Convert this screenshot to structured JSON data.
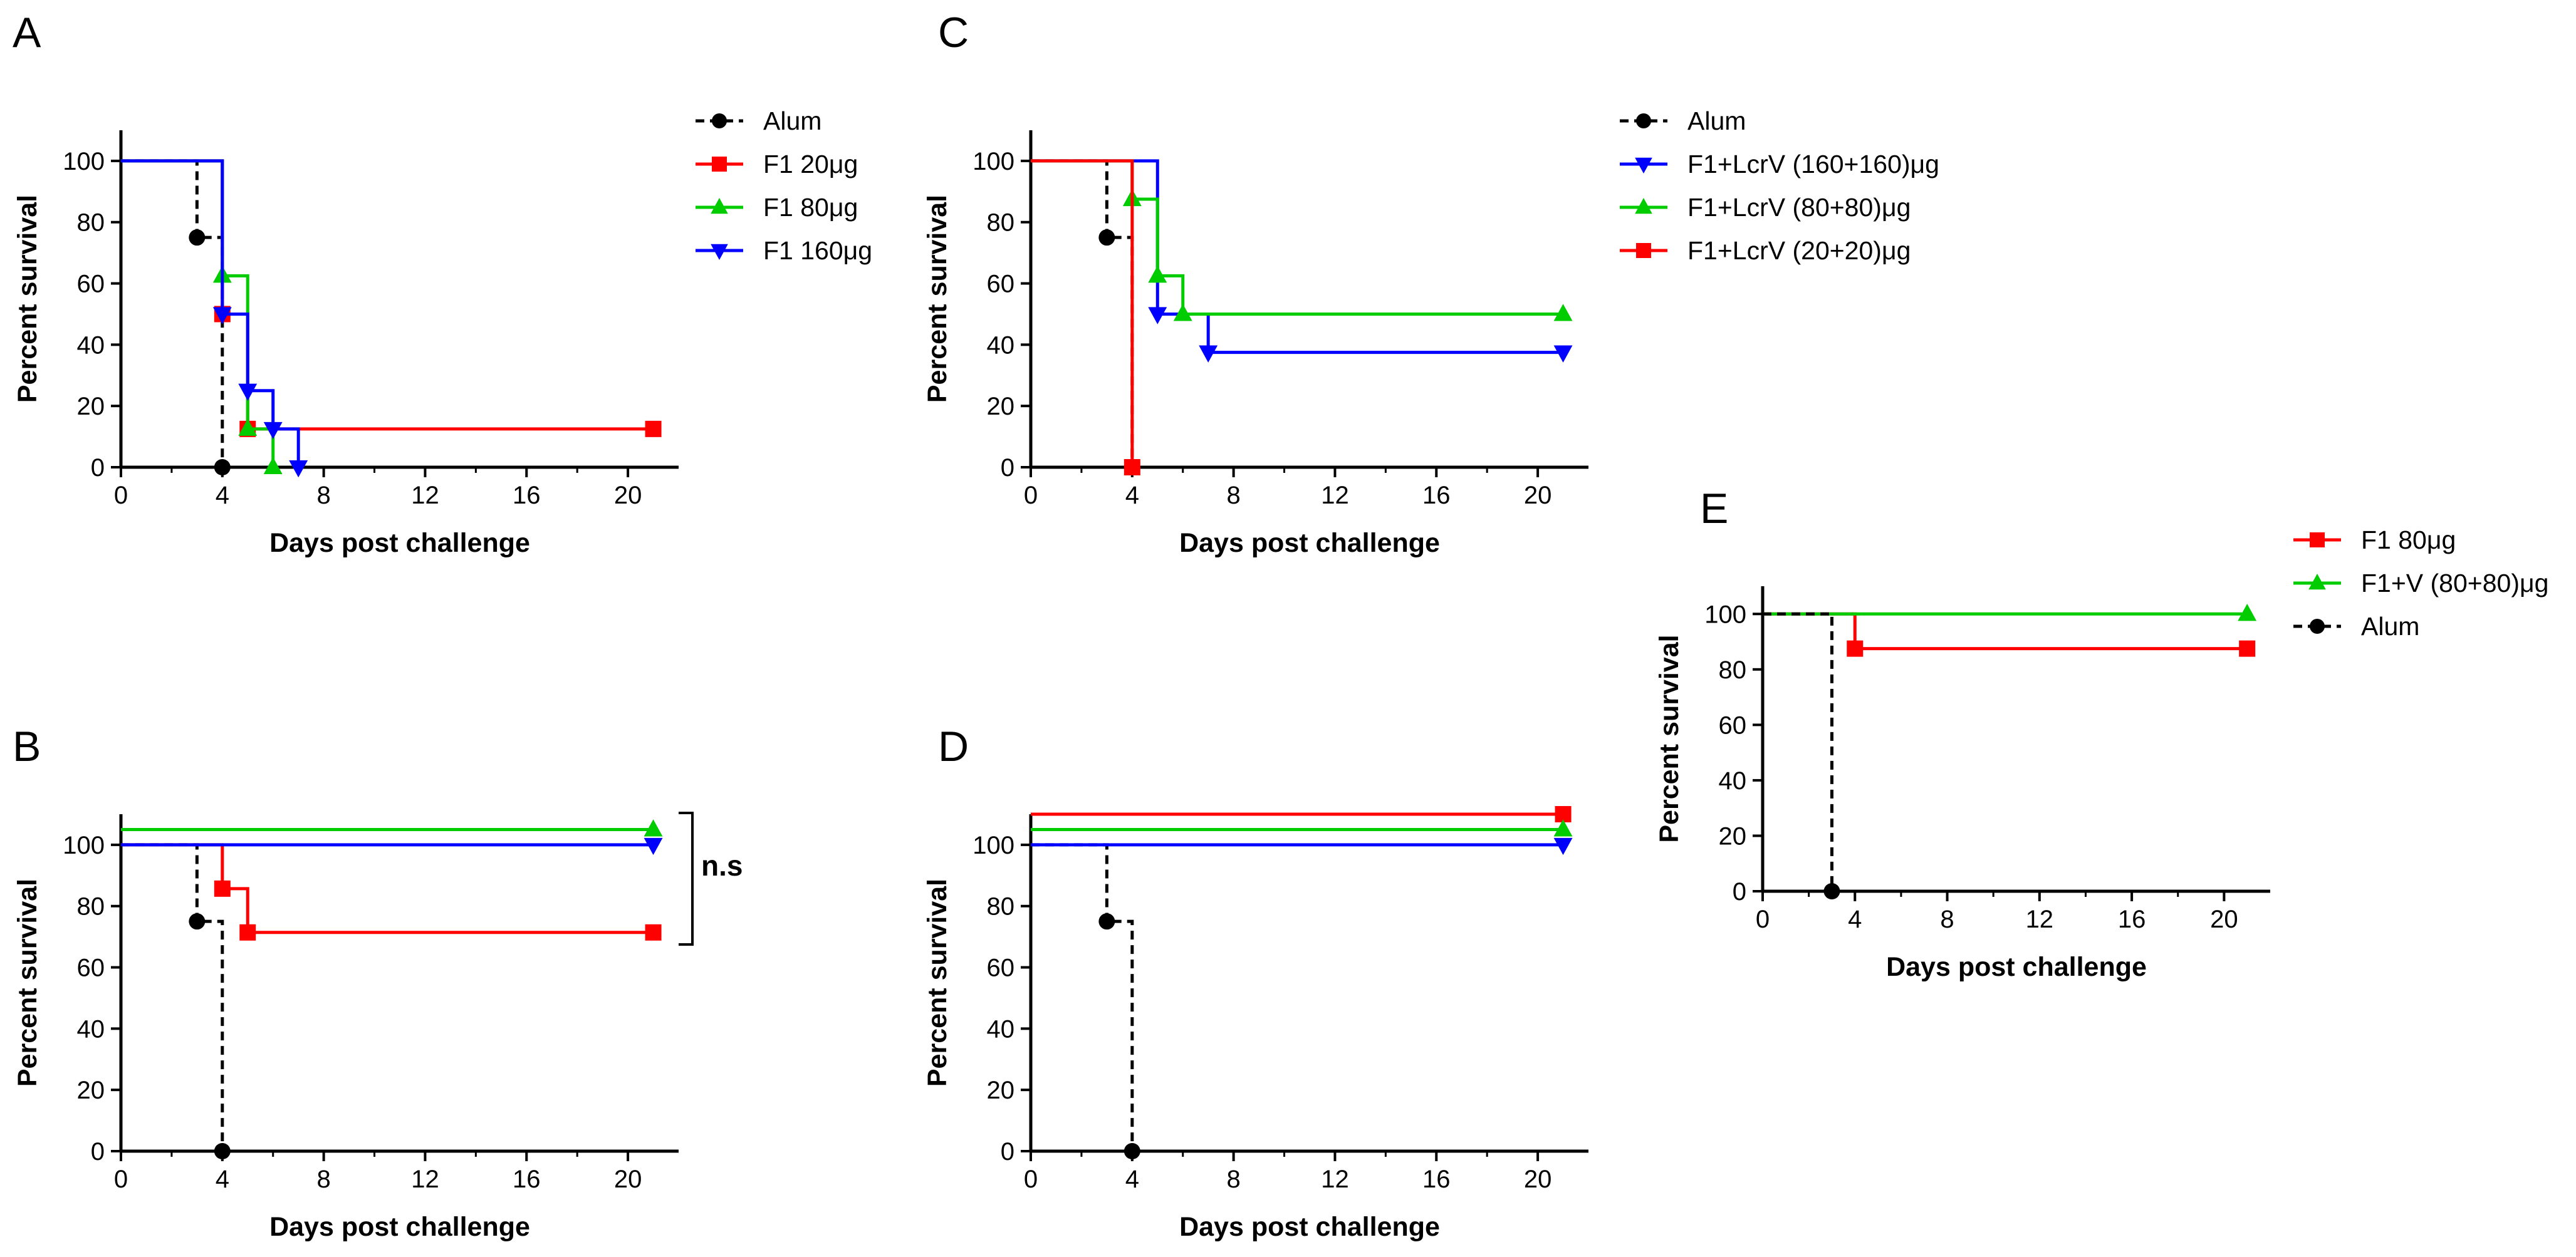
{
  "chart_data": [
    {
      "panel": "A",
      "type": "line",
      "step": true,
      "xlabel": "Days post challenge",
      "ylabel": "Percent survival",
      "xlim": [
        0,
        22
      ],
      "ylim": [
        0,
        110
      ],
      "xticks": [
        "0",
        "4",
        "8",
        "12",
        "16",
        "20"
      ],
      "yticks": [
        "0",
        "20",
        "40",
        "60",
        "80",
        "100"
      ],
      "legend": "right",
      "series": [
        {
          "name": "Alum",
          "color": "#000000",
          "dashed": true,
          "marker": "circle",
          "steps": [
            [
              0,
              100
            ],
            [
              3,
              75
            ],
            [
              4,
              0
            ]
          ],
          "marks": [
            [
              3,
              75
            ],
            [
              4,
              0
            ]
          ]
        },
        {
          "name": "F1 20μg",
          "color": "#ff0000",
          "dashed": false,
          "marker": "square",
          "steps": [
            [
              0,
              100
            ],
            [
              4,
              50
            ],
            [
              5,
              12.5
            ]
          ],
          "end": 21,
          "marks": [
            [
              4,
              50
            ],
            [
              5,
              12.5
            ],
            [
              21,
              12.5
            ]
          ]
        },
        {
          "name": "F1 80μg",
          "color": "#00cc00",
          "dashed": false,
          "marker": "triangle-up",
          "steps": [
            [
              0,
              100
            ],
            [
              4,
              62.5
            ],
            [
              5,
              12.5
            ],
            [
              6,
              0
            ]
          ],
          "marks": [
            [
              4,
              62.5
            ],
            [
              5,
              12.5
            ],
            [
              6,
              0
            ]
          ]
        },
        {
          "name": "F1 160μg",
          "color": "#0000ff",
          "dashed": false,
          "marker": "triangle-down",
          "steps": [
            [
              0,
              100
            ],
            [
              4,
              50
            ],
            [
              5,
              25
            ],
            [
              6,
              12.5
            ],
            [
              7,
              0
            ]
          ],
          "marks": [
            [
              4,
              50
            ],
            [
              5,
              25
            ],
            [
              6,
              12.5
            ],
            [
              7,
              0
            ]
          ]
        }
      ]
    },
    {
      "panel": "B",
      "type": "line",
      "step": true,
      "xlabel": "Days post challenge",
      "ylabel": "Percent survival",
      "xlim": [
        0,
        22
      ],
      "ylim": [
        0,
        110
      ],
      "xticks": [
        "0",
        "4",
        "8",
        "12",
        "16",
        "20"
      ],
      "yticks": [
        "0",
        "20",
        "40",
        "60",
        "80",
        "100"
      ],
      "annotation": "n.s",
      "series": [
        {
          "name": "Alum",
          "color": "#000000",
          "dashed": true,
          "marker": "circle",
          "steps": [
            [
              0,
              100
            ],
            [
              3,
              75
            ],
            [
              4,
              0
            ]
          ],
          "marks": [
            [
              3,
              75
            ],
            [
              4,
              0
            ]
          ]
        },
        {
          "name": "F1 20μg",
          "color": "#ff0000",
          "dashed": false,
          "marker": "square",
          "steps": [
            [
              0,
              100
            ],
            [
              4,
              85.7
            ],
            [
              5,
              71.4
            ]
          ],
          "end": 21,
          "marks": [
            [
              4,
              85.7
            ],
            [
              5,
              71.4
            ],
            [
              21,
              71.4
            ]
          ]
        },
        {
          "name": "F1 80μg",
          "color": "#00cc00",
          "dashed": false,
          "marker": "triangle-up",
          "steps": [
            [
              0,
              105
            ]
          ],
          "end": 21,
          "marks": [
            [
              21,
              105
            ]
          ]
        },
        {
          "name": "F1 160μg",
          "color": "#0000ff",
          "dashed": false,
          "marker": "triangle-down",
          "steps": [
            [
              0,
              100
            ]
          ],
          "end": 21,
          "marks": [
            [
              21,
              100
            ]
          ]
        }
      ]
    },
    {
      "panel": "C",
      "type": "line",
      "step": true,
      "xlabel": "Days post challenge",
      "ylabel": "Percent survival",
      "xlim": [
        0,
        22
      ],
      "ylim": [
        0,
        110
      ],
      "xticks": [
        "0",
        "4",
        "8",
        "12",
        "16",
        "20"
      ],
      "yticks": [
        "0",
        "20",
        "40",
        "60",
        "80",
        "100"
      ],
      "legend": "right",
      "series": [
        {
          "name": "Alum",
          "color": "#000000",
          "dashed": true,
          "marker": "circle",
          "steps": [
            [
              0,
              100
            ],
            [
              3,
              75
            ],
            [
              4,
              0
            ]
          ],
          "marks": [
            [
              3,
              75
            ],
            [
              4,
              0
            ]
          ]
        },
        {
          "name": "F1+LcrV (160+160)μg",
          "color": "#0000ff",
          "dashed": false,
          "marker": "triangle-down",
          "steps": [
            [
              0,
              100
            ],
            [
              5,
              50
            ],
            [
              7,
              37.5
            ]
          ],
          "end": 21,
          "marks": [
            [
              5,
              50
            ],
            [
              7,
              37.5
            ],
            [
              21,
              37.5
            ]
          ]
        },
        {
          "name": "F1+LcrV (80+80)μg",
          "color": "#00cc00",
          "dashed": false,
          "marker": "triangle-up",
          "steps": [
            [
              0,
              100
            ],
            [
              4,
              87.5
            ],
            [
              5,
              62.5
            ],
            [
              6,
              50
            ]
          ],
          "end": 21,
          "marks": [
            [
              4,
              87.5
            ],
            [
              5,
              62.5
            ],
            [
              6,
              50
            ],
            [
              21,
              50
            ]
          ]
        },
        {
          "name": "F1+LcrV (20+20)μg",
          "color": "#ff0000",
          "dashed": false,
          "marker": "square",
          "steps": [
            [
              0,
              100
            ],
            [
              4,
              0
            ]
          ],
          "marks": [
            [
              4,
              0
            ]
          ]
        }
      ]
    },
    {
      "panel": "D",
      "type": "line",
      "step": true,
      "xlabel": "Days post challenge",
      "ylabel": "Percent survival",
      "xlim": [
        0,
        22
      ],
      "ylim": [
        0,
        110
      ],
      "xticks": [
        "0",
        "4",
        "8",
        "12",
        "16",
        "20"
      ],
      "yticks": [
        "0",
        "20",
        "40",
        "60",
        "80",
        "100"
      ],
      "series": [
        {
          "name": "Alum",
          "color": "#000000",
          "dashed": true,
          "marker": "circle",
          "steps": [
            [
              0,
              100
            ],
            [
              3,
              75
            ],
            [
              4,
              0
            ]
          ],
          "marks": [
            [
              3,
              75
            ],
            [
              4,
              0
            ]
          ]
        },
        {
          "name": "F1+LcrV (20+20)μg",
          "color": "#ff0000",
          "dashed": false,
          "marker": "square",
          "steps": [
            [
              0,
              110
            ]
          ],
          "end": 21,
          "marks": [
            [
              21,
              110
            ]
          ]
        },
        {
          "name": "F1+LcrV (80+80)μg",
          "color": "#00cc00",
          "dashed": false,
          "marker": "triangle-up",
          "steps": [
            [
              0,
              105
            ]
          ],
          "end": 21,
          "marks": [
            [
              21,
              105
            ]
          ]
        },
        {
          "name": "F1+LcrV (160+160)μg",
          "color": "#0000ff",
          "dashed": false,
          "marker": "triangle-down",
          "steps": [
            [
              0,
              100
            ]
          ],
          "end": 21,
          "marks": [
            [
              21,
              100
            ]
          ]
        }
      ]
    },
    {
      "panel": "E",
      "type": "line",
      "step": true,
      "xlabel": "Days post challenge",
      "ylabel": "Percent survival",
      "xlim": [
        0,
        22
      ],
      "ylim": [
        0,
        110
      ],
      "xticks": [
        "0",
        "4",
        "8",
        "12",
        "16",
        "20"
      ],
      "yticks": [
        "0",
        "20",
        "40",
        "60",
        "80",
        "100"
      ],
      "legend": "right",
      "series": [
        {
          "name": "F1 80μg",
          "color": "#ff0000",
          "dashed": false,
          "marker": "square",
          "steps": [
            [
              0,
              100
            ],
            [
              4,
              87.5
            ]
          ],
          "end": 21,
          "marks": [
            [
              4,
              87.5
            ],
            [
              21,
              87.5
            ]
          ]
        },
        {
          "name": "F1+V (80+80)μg",
          "color": "#00cc00",
          "dashed": false,
          "marker": "triangle-up",
          "steps": [
            [
              0,
              100
            ]
          ],
          "end": 21,
          "marks": [
            [
              21,
              100
            ]
          ]
        },
        {
          "name": "Alum",
          "color": "#000000",
          "dashed": true,
          "marker": "circle",
          "steps": [
            [
              0,
              100
            ],
            [
              3,
              0
            ]
          ],
          "marks": [
            [
              3,
              0
            ]
          ]
        }
      ]
    }
  ]
}
